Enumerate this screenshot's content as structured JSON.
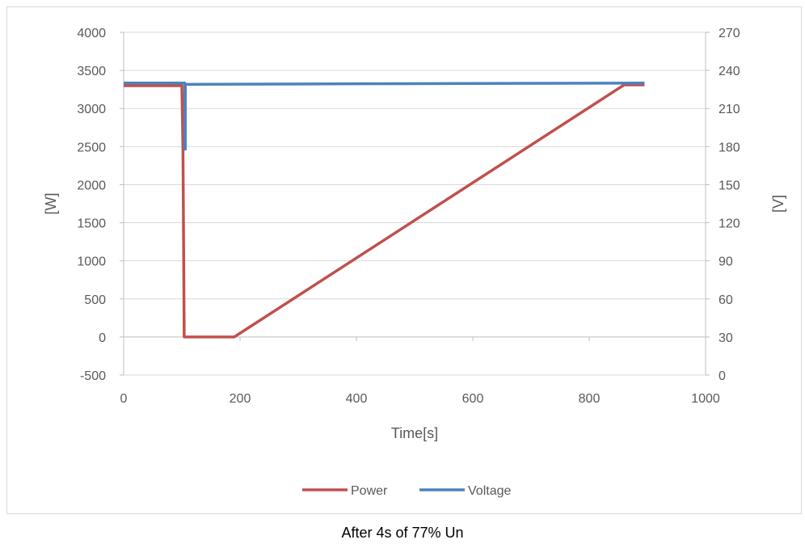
{
  "chart_data": {
    "type": "line",
    "caption": "After 4s of 77% Un",
    "xlabel": "Time[s]",
    "ylabel_left": "[W]",
    "ylabel_right": "[V]",
    "xlim": [
      0,
      1000
    ],
    "ylim_left": [
      -500,
      4000
    ],
    "ylim_right": [
      0,
      270
    ],
    "x_ticks": [
      0,
      200,
      400,
      600,
      800,
      1000
    ],
    "y_left_ticks": [
      -500,
      0,
      500,
      1000,
      1500,
      2000,
      2500,
      3000,
      3500,
      4000
    ],
    "y_right_ticks": [
      0,
      30,
      60,
      90,
      120,
      150,
      180,
      210,
      240,
      270
    ],
    "grid": "horizontal",
    "legend_position": "bottom",
    "series": [
      {
        "name": "Power",
        "axis": "left",
        "color": "#c0504d",
        "x": [
          0,
          100,
          102,
          104,
          105,
          150,
          185,
          190,
          860,
          895
        ],
        "y": [
          3300,
          3300,
          2450,
          0,
          0,
          0,
          0,
          0,
          3310,
          3310
        ]
      },
      {
        "name": "Voltage",
        "axis": "right",
        "color": "#4f81bd",
        "x": [
          0,
          105,
          105,
          106,
          106,
          107,
          400,
          895
        ],
        "y": [
          230,
          230,
          178,
          178,
          229,
          229,
          229.5,
          230
        ]
      }
    ]
  }
}
